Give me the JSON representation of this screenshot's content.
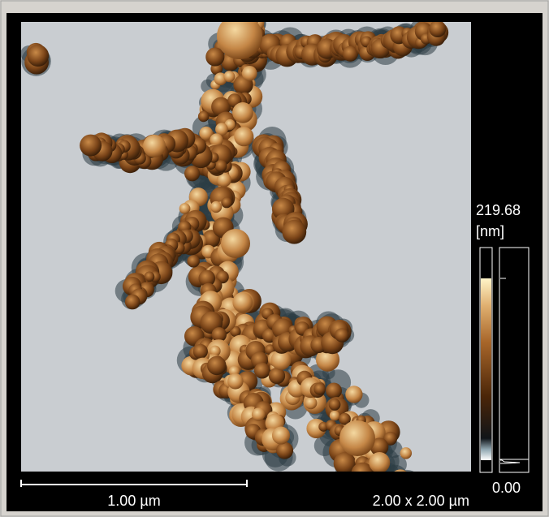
{
  "image": {
    "scale_bar_label": "1.00 µm",
    "size_label": "2.00 x 2.00 µm"
  },
  "colorbar": {
    "max": "219.68",
    "unit": "[nm]",
    "min": "0.00"
  }
}
